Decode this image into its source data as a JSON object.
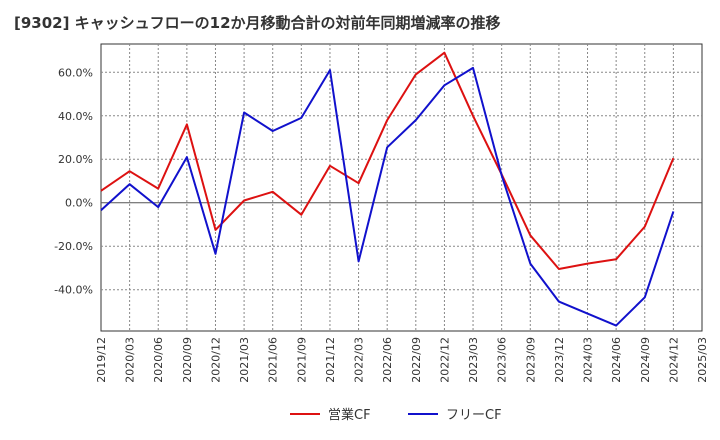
{
  "chart_data": {
    "type": "line",
    "title": "[9302]  キャッシュフローの12か月移動合計の対前年同期増減率の推移",
    "xlabel": "",
    "ylabel": "",
    "x": [
      "2019/12",
      "2020/03",
      "2020/06",
      "2020/09",
      "2020/12",
      "2021/03",
      "2021/06",
      "2021/09",
      "2021/12",
      "2022/03",
      "2022/06",
      "2022/09",
      "2022/12",
      "2023/03",
      "2023/06",
      "2023/09",
      "2023/12",
      "2024/03",
      "2024/06",
      "2024/09",
      "2024/12"
    ],
    "x_ticks": [
      "2019/12",
      "2020/03",
      "2020/06",
      "2020/09",
      "2020/12",
      "2021/03",
      "2021/06",
      "2021/09",
      "2021/12",
      "2022/03",
      "2022/06",
      "2022/09",
      "2022/12",
      "2023/03",
      "2023/06",
      "2023/09",
      "2023/12",
      "2024/03",
      "2024/06",
      "2024/09",
      "2024/12",
      "2025/03"
    ],
    "y_ticks": [
      "60.0%",
      "40.0%",
      "20.0%",
      "0.0%",
      "-20.0%",
      "-40.0%"
    ],
    "y_tick_values": [
      60,
      40,
      20,
      0,
      -20,
      -40
    ],
    "ylim": [
      -59,
      73
    ],
    "grid": true,
    "legend_position": "bottom",
    "series": [
      {
        "name": "営業CF",
        "color": "#dd1111",
        "values": [
          5.5,
          14.5,
          6.5,
          36,
          -12.5,
          1,
          5,
          -5.5,
          17,
          9,
          38,
          59,
          69,
          40,
          13,
          -15,
          -30.5,
          -28,
          -26,
          -11,
          20.5
        ]
      },
      {
        "name": "フリーCF",
        "color": "#1111cc",
        "values": [
          -3.5,
          8.5,
          -2,
          21,
          -23.5,
          41.5,
          33,
          39,
          61,
          -27,
          25.5,
          38,
          54,
          62,
          12.5,
          -28,
          -45.5,
          -51,
          -56.5,
          -43.5,
          -4
        ]
      }
    ]
  }
}
